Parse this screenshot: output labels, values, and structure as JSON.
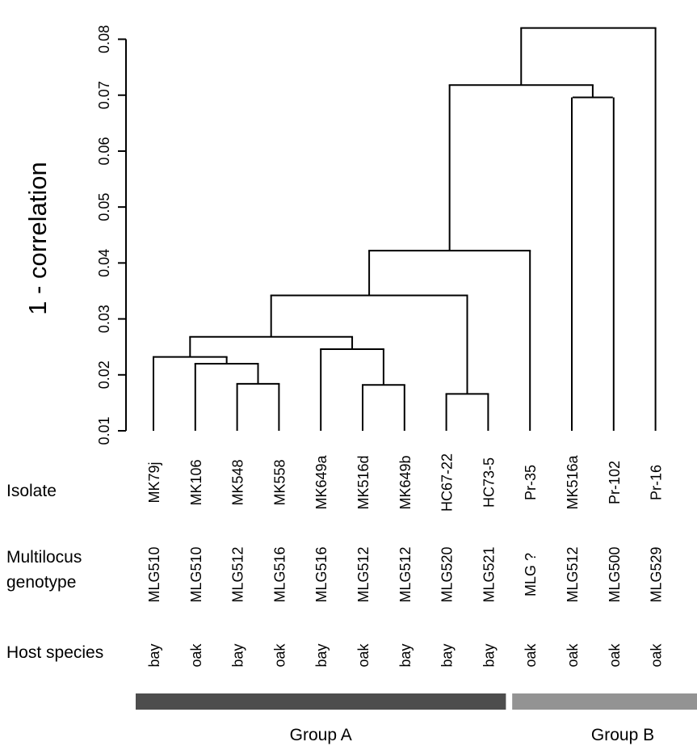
{
  "chart_data": {
    "type": "dendrogram",
    "ylabel": "1 - correlation",
    "ylim": [
      0.01,
      0.082
    ],
    "yticks": [
      "0.01",
      "0.02",
      "0.03",
      "0.04",
      "0.05",
      "0.06",
      "0.07",
      "0.08"
    ],
    "row_labels": {
      "isolate": "Isolate",
      "genotype": [
        "Multilocus",
        "genotype"
      ],
      "host": "Host species"
    },
    "leaves": [
      {
        "isolate": "MK79j",
        "genotype": "MLG510",
        "host": "bay"
      },
      {
        "isolate": "MK106",
        "genotype": "MLG510",
        "host": "oak"
      },
      {
        "isolate": "MK548",
        "genotype": "MLG512",
        "host": "bay"
      },
      {
        "isolate": "MK558",
        "genotype": "MLG516",
        "host": "oak"
      },
      {
        "isolate": "MK649a",
        "genotype": "MLG516",
        "host": "bay"
      },
      {
        "isolate": "MK516d",
        "genotype": "MLG512",
        "host": "oak"
      },
      {
        "isolate": "MK649b",
        "genotype": "MLG512",
        "host": "bay"
      },
      {
        "isolate": "HC67-22",
        "genotype": "MLG520",
        "host": "bay"
      },
      {
        "isolate": "HC73-5",
        "genotype": "MLG521",
        "host": "bay"
      },
      {
        "isolate": "Pr-35",
        "genotype": "MLG ?",
        "host": "oak"
      },
      {
        "isolate": "MK516a",
        "genotype": "MLG512",
        "host": "oak"
      },
      {
        "isolate": "Pr-102",
        "genotype": "MLG500",
        "host": "oak"
      },
      {
        "isolate": "Pr-16",
        "genotype": "MLG529",
        "host": "oak"
      }
    ],
    "merges": [
      {
        "left": 2,
        "right": 3,
        "height": 0.0184
      },
      {
        "left": 5,
        "right": 6,
        "height": 0.0182
      },
      {
        "left": 7,
        "right": 8,
        "height": 0.0166
      },
      {
        "left": 1,
        "right": 13,
        "height": 0.022
      },
      {
        "left": 0,
        "right": 16,
        "height": 0.0232
      },
      {
        "left": 4,
        "right": 14,
        "height": 0.0246
      },
      {
        "left": 17,
        "right": 18,
        "height": 0.0268
      },
      {
        "left": 19,
        "right": 15,
        "height": 0.0342
      },
      {
        "left": 20,
        "right": 9,
        "height": 0.0422
      },
      {
        "left": 11,
        "right": 10,
        "height": 0.0696
      },
      {
        "left": 21,
        "right": 22,
        "height": 0.0718
      },
      {
        "left": 23,
        "right": 12,
        "height": 0.082
      }
    ],
    "groups": [
      {
        "label": "Group A",
        "from": 0,
        "to": 8,
        "color": "#4d4d4d"
      },
      {
        "label": "Group B",
        "from": 9,
        "to": 12,
        "color": "#939393"
      }
    ]
  }
}
